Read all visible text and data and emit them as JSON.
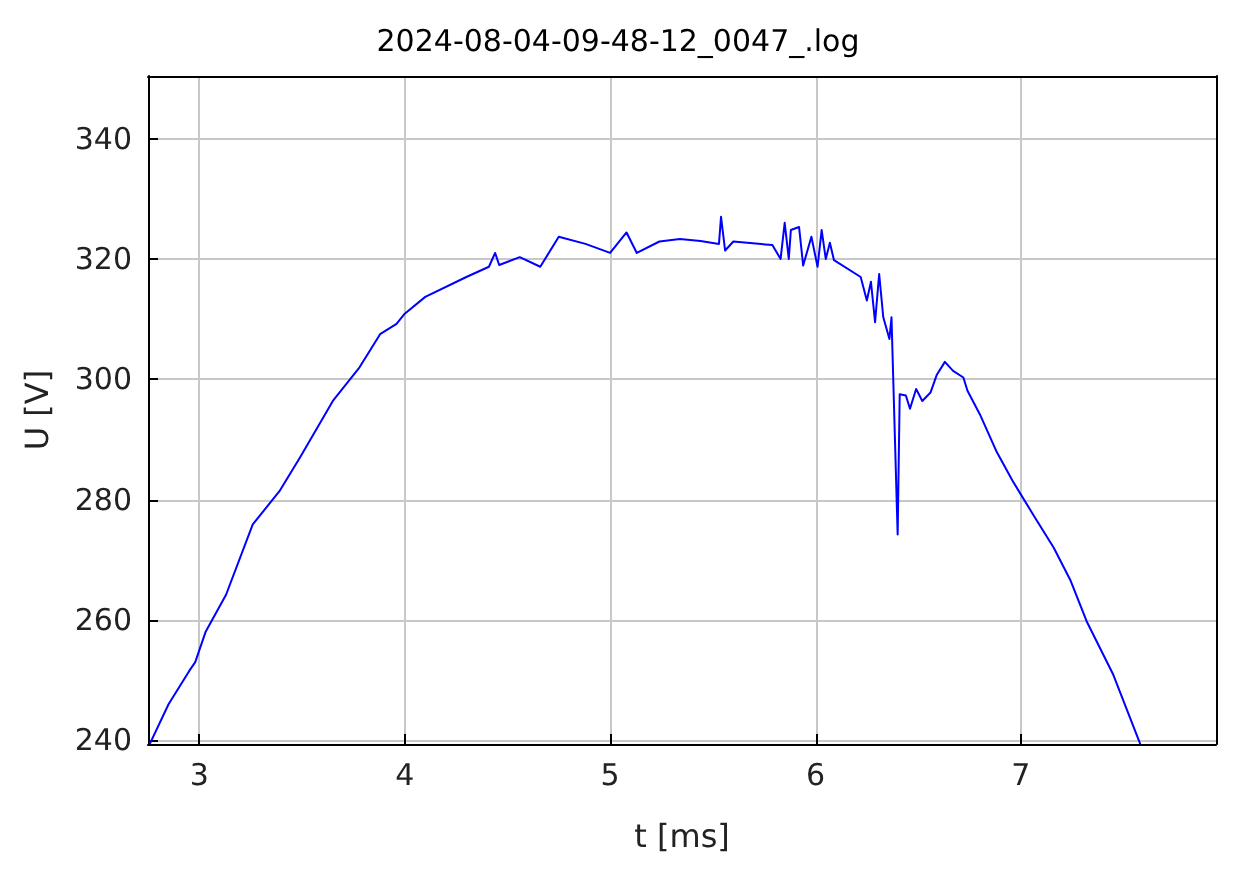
{
  "chart_data": {
    "type": "line",
    "title": "2024-08-04-09-48-12_0047_.log",
    "xlabel": "t [ms]",
    "ylabel": "U [V]",
    "x": [
      2.76,
      2.85,
      2.95,
      2.98,
      3.03,
      3.13,
      3.26,
      3.39,
      3.49,
      3.65,
      3.78,
      3.88,
      3.96,
      4.0,
      4.1,
      4.3,
      4.41,
      4.44,
      4.46,
      4.56,
      4.66,
      4.75,
      4.88,
      5.0,
      5.08,
      5.13,
      5.24,
      5.34,
      5.44,
      5.53,
      5.54,
      5.56,
      5.6,
      5.79,
      5.83,
      5.85,
      5.87,
      5.88,
      5.92,
      5.94,
      5.98,
      6.01,
      6.03,
      6.05,
      6.07,
      6.09,
      6.22,
      6.25,
      6.27,
      6.29,
      6.31,
      6.33,
      6.36,
      6.37,
      6.4,
      6.41,
      6.44,
      6.46,
      6.49,
      6.52,
      6.56,
      6.59,
      6.63,
      6.67,
      6.72,
      6.74,
      6.8,
      6.88,
      6.96,
      7.06,
      7.16,
      7.24,
      7.32,
      7.45,
      7.58
    ],
    "series": [
      {
        "color": "#0000ff",
        "values": [
          239.5,
          246,
          251.5,
          253,
          258,
          264.2,
          275.9,
          281.4,
          287,
          296.4,
          302,
          307.5,
          309.2,
          310.9,
          313.7,
          317,
          318.7,
          321,
          319,
          320.3,
          318.7,
          323.7,
          322.5,
          321,
          324.4,
          321,
          322.9,
          323.3,
          323,
          322.5,
          327,
          321.4,
          322.9,
          322.3,
          320,
          326,
          320,
          324.8,
          325.3,
          318.9,
          323.7,
          318.7,
          324.8,
          320,
          322.7,
          319.8,
          317,
          313.1,
          316.2,
          309.5,
          317.5,
          310.3,
          306.7,
          310.3,
          274.2,
          297.5,
          297.3,
          295.1,
          298.4,
          296.4,
          297.8,
          300.7,
          302.9,
          301.4,
          300.3,
          298.1,
          294.2,
          288.1,
          283.1,
          277.5,
          272,
          266.7,
          259.8,
          250.9,
          239.5
        ]
      }
    ],
    "xlim": [
      2.75,
      7.95
    ],
    "xticks": [
      3,
      4,
      5,
      6,
      7
    ],
    "ylim": [
      239.4,
      350.4
    ],
    "yticks": [
      240,
      260,
      280,
      300,
      320,
      340
    ],
    "grid": true,
    "marker": "none",
    "line_style": "solid"
  }
}
